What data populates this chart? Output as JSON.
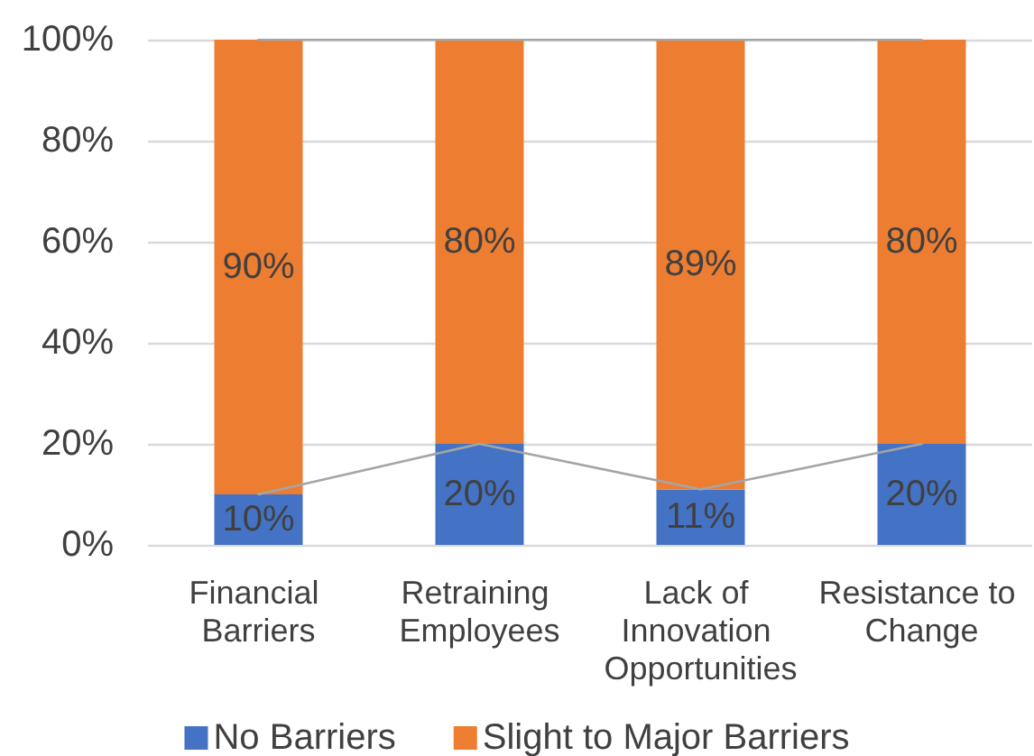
{
  "chart_data": {
    "type": "bar",
    "stacked": true,
    "categories": [
      "Financial Barriers",
      "Retraining Employees",
      "Lack of Innovation Opportunities",
      "Resistance to Change"
    ],
    "series": [
      {
        "name": "No Barriers",
        "color": "#4472c4",
        "values": [
          10,
          20,
          11,
          20
        ],
        "value_labels": [
          "10%",
          "20%",
          "11%",
          "20%"
        ]
      },
      {
        "name": "Slight to Major Barriers",
        "color": "#ed7d31",
        "values": [
          90,
          80,
          89,
          80
        ],
        "value_labels": [
          "90%",
          "80%",
          "89%",
          "80%"
        ]
      },
      {
        "type": "line",
        "color": "#a5a5a5",
        "values": [
          10,
          20,
          11,
          20
        ]
      },
      {
        "type": "line",
        "color": "#a5a5a5",
        "values": [
          100,
          100,
          100,
          100
        ]
      }
    ],
    "ylim": [
      0,
      100
    ],
    "yticks": [
      {
        "value": 0,
        "label": "0%"
      },
      {
        "value": 20,
        "label": "20%"
      },
      {
        "value": 40,
        "label": "40%"
      },
      {
        "value": 60,
        "label": "60%"
      },
      {
        "value": 80,
        "label": "80%"
      },
      {
        "value": 100,
        "label": "100%"
      }
    ],
    "grid": "y",
    "legend": "bottom",
    "marker": "none"
  }
}
